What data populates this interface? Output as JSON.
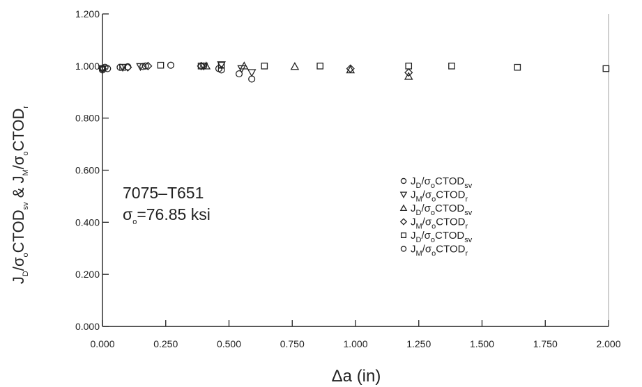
{
  "chart_data": {
    "type": "scatter",
    "xlabel": "Δa  (in)",
    "ylabel": {
      "part1": {
        "J": "J",
        "sub1": "D",
        "mid": "/σ",
        "sub2": "o",
        "tail": "CTOD",
        "sub3": "sv"
      },
      "sep": " & ",
      "part2": {
        "J": "J",
        "sub1": "M",
        "mid": "/σ",
        "sub2": "o",
        "tail": "CTOD",
        "sub3": "r"
      }
    },
    "xlim": [
      0,
      2.0
    ],
    "ylim": [
      0,
      1.2
    ],
    "xticks": [
      "0.000",
      "0.250",
      "0.500",
      "0.750",
      "1.000",
      "1.250",
      "1.500",
      "1.750",
      "2.000"
    ],
    "yticks": [
      "0.000",
      "0.200",
      "0.400",
      "0.600",
      "0.800",
      "1.000",
      "1.200"
    ],
    "grid": false,
    "legend_position": "center-right",
    "annotation": {
      "line1": "7075–T651",
      "line2": {
        "sigma": "σ",
        "sub": "o",
        "rest": "=76.85 ksi"
      }
    },
    "series": [
      {
        "name": {
          "J": "J",
          "sub1": "D",
          "mid": "/σ",
          "sub2": "o",
          "tail": "CTOD",
          "sub3": "sv"
        },
        "marker": "circle",
        "x": [
          0.0,
          0.01,
          0.07,
          0.1,
          0.17,
          0.27,
          0.4,
          0.47,
          0.54,
          0.59
        ],
        "y": [
          0.99,
          0.995,
          0.995,
          0.997,
          1.0,
          1.003,
          1.0,
          0.985,
          0.97,
          0.95
        ]
      },
      {
        "name": {
          "J": "J",
          "sub1": "M",
          "mid": "/σ",
          "sub2": "o",
          "tail": "CTOD",
          "sub3": "r"
        },
        "marker": "triangle-down",
        "x": [
          0.0,
          0.08,
          0.15,
          0.4,
          0.47,
          0.55,
          0.59
        ],
        "y": [
          0.99,
          0.995,
          0.998,
          1.0,
          1.005,
          0.99,
          0.975
        ]
      },
      {
        "name": {
          "J": "J",
          "sub1": "D",
          "mid": "/σ",
          "sub2": "o",
          "tail": "CTOD",
          "sub3": "sv"
        },
        "marker": "triangle-up",
        "x": [
          0.41,
          0.56,
          0.76,
          0.98,
          1.21
        ],
        "y": [
          1.0,
          1.0,
          0.998,
          0.985,
          0.96
        ]
      },
      {
        "name": {
          "J": "J",
          "sub1": "M",
          "mid": "/σ",
          "sub2": "o",
          "tail": "CTOD",
          "sub3": "r"
        },
        "marker": "diamond",
        "x": [
          0.0,
          0.1,
          0.18,
          0.39,
          0.98,
          1.21
        ],
        "y": [
          0.99,
          0.995,
          1.0,
          1.0,
          0.99,
          0.975
        ]
      },
      {
        "name": {
          "J": "J",
          "sub1": "D",
          "mid": "/σ",
          "sub2": "o",
          "tail": "CTOD",
          "sub3": "sv"
        },
        "marker": "square",
        "x": [
          0.08,
          0.23,
          0.39,
          0.47,
          0.64,
          0.86,
          1.21,
          1.38,
          1.64,
          1.99
        ],
        "y": [
          0.995,
          1.003,
          1.0,
          1.003,
          1.0,
          1.0,
          1.0,
          1.0,
          0.995,
          0.99
        ]
      },
      {
        "name": {
          "J": "J",
          "sub1": "M",
          "mid": "/σ",
          "sub2": "o",
          "tail": "CTOD",
          "sub3": "r"
        },
        "marker": "circle",
        "x": [
          0.0,
          0.02,
          0.16,
          0.46
        ],
        "y": [
          0.985,
          0.99,
          0.998,
          0.99
        ]
      }
    ]
  }
}
